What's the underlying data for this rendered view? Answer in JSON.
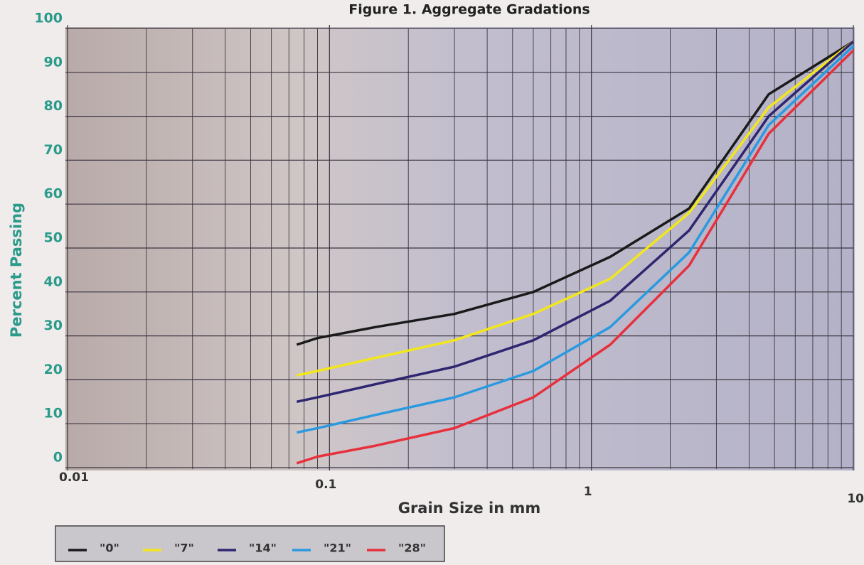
{
  "chart_data": {
    "type": "line",
    "title": "Figure 1. Aggregate Gradations",
    "x_label": "Grain Size in mm",
    "y_label": "Percent Passing",
    "x_log": true,
    "grid": true,
    "xlim": [
      0.01,
      10
    ],
    "xticks": [
      0.01,
      0.1,
      1,
      10
    ],
    "ylim": [
      0,
      100
    ],
    "yticks": [
      0,
      10,
      20,
      30,
      40,
      50,
      60,
      70,
      80,
      90,
      100
    ],
    "x": [
      0.075,
      0.09,
      0.15,
      0.3,
      0.6,
      1.18,
      2.36,
      4.75,
      10
    ],
    "series": [
      {
        "name": "\"0\"",
        "color": "#1a1a1a",
        "values": [
          28,
          29.5,
          32,
          35,
          40,
          48,
          59,
          85,
          97
        ]
      },
      {
        "name": "\"7\"",
        "color": "#f2e61c",
        "values": [
          21,
          22,
          25,
          29,
          35,
          43,
          58,
          82,
          97
        ]
      },
      {
        "name": "\"14\"",
        "color": "#2e2670",
        "values": [
          15,
          16,
          19,
          23,
          29,
          38,
          54,
          80,
          97
        ]
      },
      {
        "name": "\"21\"",
        "color": "#2a9ae0",
        "values": [
          8,
          9,
          12,
          16,
          22,
          32,
          49,
          78,
          96
        ]
      },
      {
        "name": "\"28\"",
        "color": "#e8303c",
        "values": [
          1,
          2.5,
          5,
          9,
          16,
          28,
          46,
          76,
          95
        ]
      }
    ]
  }
}
